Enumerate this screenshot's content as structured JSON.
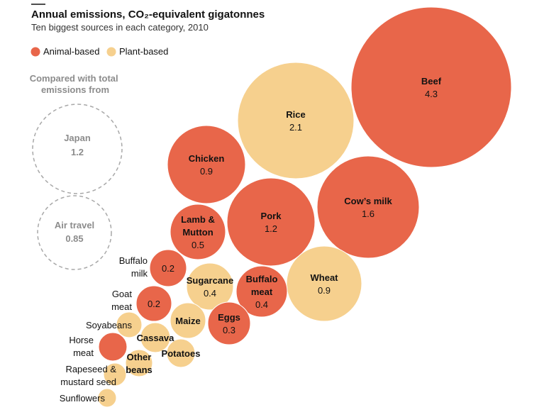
{
  "chart_data": {
    "type": "bubble",
    "title": "Annual emissions, CO₂-equivalent gigatonnes",
    "subtitle": "Ten biggest sources in each category, 2010",
    "colors": {
      "Animal-based": "#e8664a",
      "Plant-based": "#f6d08e",
      "comparison_stroke": "#a8a8a8"
    },
    "legend": [
      {
        "name": "Animal-based",
        "color": "#e8664a"
      },
      {
        "name": "Plant-based",
        "color": "#f6d08e"
      }
    ],
    "legend_position": "top-left",
    "items": [
      {
        "name": "Beef",
        "value": 4.3,
        "category": "Animal-based",
        "value_text": "4.3"
      },
      {
        "name": "Rice",
        "value": 2.1,
        "category": "Plant-based",
        "value_text": "2.1"
      },
      {
        "name": "Cow’s milk",
        "value": 1.6,
        "category": "Animal-based",
        "value_text": "1.6"
      },
      {
        "name": "Pork",
        "value": 1.2,
        "category": "Animal-based",
        "value_text": "1.2"
      },
      {
        "name": "Chicken",
        "value": 0.9,
        "category": "Animal-based",
        "value_text": "0.9"
      },
      {
        "name": "Wheat",
        "value": 0.9,
        "category": "Plant-based",
        "value_text": "0.9"
      },
      {
        "name": "Lamb & Mutton",
        "value": 0.5,
        "category": "Animal-based",
        "value_text": "0.5"
      },
      {
        "name": "Sugarcane",
        "value": 0.4,
        "category": "Plant-based",
        "value_text": "0.4"
      },
      {
        "name": "Buffalo meat",
        "value": 0.4,
        "category": "Animal-based",
        "value_text": "0.4"
      },
      {
        "name": "Eggs",
        "value": 0.3,
        "category": "Animal-based",
        "value_text": "0.3"
      },
      {
        "name": "Buffalo milk",
        "value": 0.2,
        "category": "Animal-based",
        "value_text": "0.2"
      },
      {
        "name": "Goat meat",
        "value": 0.2,
        "category": "Animal-based",
        "value_text": "0.2"
      },
      {
        "name": "Maize",
        "value": 0.15,
        "category": "Plant-based"
      },
      {
        "name": "Cassava",
        "value": 0.1,
        "category": "Plant-based"
      },
      {
        "name": "Potatoes",
        "value": 0.1,
        "category": "Plant-based"
      },
      {
        "name": "Soyabeans",
        "value": 0.09,
        "category": "Plant-based"
      },
      {
        "name": "Other beans",
        "value": 0.08,
        "category": "Plant-based"
      },
      {
        "name": "Horse meat",
        "value": 0.1,
        "category": "Animal-based"
      },
      {
        "name": "Rapeseed & mustard seed",
        "value": 0.06,
        "category": "Plant-based"
      },
      {
        "name": "Sunflowers",
        "value": 0.04,
        "category": "Plant-based"
      }
    ],
    "comparison": {
      "title": "Compared with total emissions from",
      "items": [
        {
          "name": "Japan",
          "value": 1.2,
          "value_text": "1.2"
        },
        {
          "name": "Air travel",
          "value": 0.85,
          "value_text": "0.85"
        }
      ]
    }
  }
}
